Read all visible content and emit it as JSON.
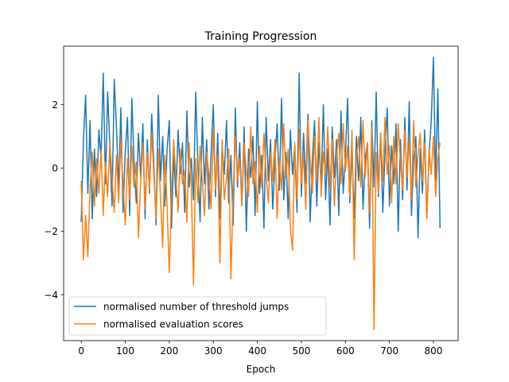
{
  "chart_data": {
    "type": "line",
    "title": "Training Progression",
    "xlabel": "Epoch",
    "ylabel": "",
    "xlim": [
      -40,
      856
    ],
    "ylim": [
      -5.45,
      3.85
    ],
    "xticks": [
      0,
      100,
      200,
      300,
      400,
      500,
      600,
      700,
      800
    ],
    "yticks": [
      -4,
      -2,
      0,
      2
    ],
    "grid": false,
    "legend": "lower-left",
    "series": [
      {
        "name": "normalised number of threshold jumps",
        "color": "#1f77b4",
        "x": [
          0,
          5,
          10,
          15,
          20,
          25,
          30,
          35,
          40,
          45,
          50,
          55,
          60,
          65,
          70,
          75,
          80,
          85,
          90,
          95,
          100,
          105,
          110,
          115,
          120,
          125,
          130,
          135,
          140,
          145,
          150,
          155,
          160,
          165,
          170,
          175,
          180,
          185,
          190,
          195,
          200,
          205,
          210,
          215,
          220,
          225,
          230,
          235,
          240,
          245,
          250,
          255,
          260,
          265,
          270,
          275,
          280,
          285,
          290,
          295,
          300,
          305,
          310,
          315,
          320,
          325,
          330,
          335,
          340,
          345,
          350,
          355,
          360,
          365,
          370,
          375,
          380,
          385,
          390,
          395,
          400,
          405,
          410,
          415,
          420,
          425,
          430,
          435,
          440,
          445,
          450,
          455,
          460,
          465,
          470,
          475,
          480,
          485,
          490,
          495,
          500,
          505,
          510,
          515,
          520,
          525,
          530,
          535,
          540,
          545,
          550,
          555,
          560,
          565,
          570,
          575,
          580,
          585,
          590,
          595,
          600,
          605,
          610,
          615,
          620,
          625,
          630,
          635,
          640,
          645,
          650,
          655,
          660,
          665,
          670,
          675,
          680,
          685,
          690,
          695,
          700,
          705,
          710,
          715,
          720,
          725,
          730,
          735,
          740,
          745,
          750,
          755,
          760,
          765,
          770,
          775,
          780,
          785,
          790,
          795,
          800,
          805,
          810,
          815
        ],
        "values": [
          -1.7,
          0.9,
          2.3,
          -0.8,
          1.5,
          -1.6,
          0.6,
          -0.9,
          1.2,
          0.3,
          3.0,
          -0.5,
          2.4,
          0.7,
          -1.2,
          2.8,
          1.3,
          -0.7,
          1.9,
          -1.4,
          0.5,
          1.6,
          -1.5,
          2.2,
          0.2,
          -1.1,
          1.1,
          -0.3,
          1.4,
          -1.6,
          0.9,
          -0.8,
          1.7,
          0.1,
          -1.8,
          2.3,
          -0.4,
          1.0,
          -1.2,
          0.6,
          1.5,
          -1.9,
          0.4,
          -0.9,
          1.2,
          -0.2,
          0.8,
          -1.4,
          1.8,
          -0.6,
          0.3,
          -1.0,
          2.4,
          0.1,
          -1.7,
          1.6,
          -0.5,
          0.9,
          -1.3,
          0.5,
          2.0,
          -0.9,
          1.1,
          -1.6,
          0.7,
          -0.2,
          1.5,
          -1.1,
          0.4,
          -1.8,
          1.9,
          -0.6,
          0.8,
          -1.2,
          1.3,
          -2.0,
          0.6,
          -0.3,
          1.0,
          -1.5,
          2.1,
          -0.8,
          0.4,
          -1.9,
          1.6,
          -0.4,
          0.9,
          -1.3,
          0.2,
          1.4,
          -0.7,
          2.2,
          -1.0,
          0.5,
          -1.6,
          1.2,
          -0.2,
          0.7,
          -1.4,
          3.0,
          -0.9,
          1.1,
          -0.5,
          1.7,
          -1.7,
          0.3,
          1.5,
          -1.2,
          0.8,
          -0.6,
          2.0,
          -1.0,
          0.6,
          -1.8,
          1.3,
          -0.3,
          0.9,
          -1.5,
          1.8,
          -0.8,
          0.4,
          2.2,
          -1.1,
          0.6,
          -1.6,
          1.0,
          -0.4,
          1.6,
          -1.3,
          0.3,
          0.8,
          -1.9,
          1.5,
          -0.6,
          2.4,
          -0.9,
          1.1,
          -1.4,
          0.5,
          1.9,
          -1.2,
          0.7,
          -0.5,
          1.4,
          -2.0,
          0.9,
          -1.0,
          1.6,
          -0.7,
          2.1,
          -1.5,
          0.3,
          1.0,
          -2.2,
          0.6,
          -0.8,
          1.2,
          -1.6,
          0.4,
          1.5,
          3.5,
          -0.4,
          2.5,
          -1.9
        ]
      },
      {
        "name": "normalised evaluation scores",
        "color": "#ff7f0e",
        "x": [
          0,
          5,
          10,
          15,
          20,
          25,
          30,
          35,
          40,
          45,
          50,
          55,
          60,
          65,
          70,
          75,
          80,
          85,
          90,
          95,
          100,
          105,
          110,
          115,
          120,
          125,
          130,
          135,
          140,
          145,
          150,
          155,
          160,
          165,
          170,
          175,
          180,
          185,
          190,
          195,
          200,
          205,
          210,
          215,
          220,
          225,
          230,
          235,
          240,
          245,
          250,
          255,
          260,
          265,
          270,
          275,
          280,
          285,
          290,
          295,
          300,
          305,
          310,
          315,
          320,
          325,
          330,
          335,
          340,
          345,
          350,
          355,
          360,
          365,
          370,
          375,
          380,
          385,
          390,
          395,
          400,
          405,
          410,
          415,
          420,
          425,
          430,
          435,
          440,
          445,
          450,
          455,
          460,
          465,
          470,
          475,
          480,
          485,
          490,
          495,
          500,
          505,
          510,
          515,
          520,
          525,
          530,
          535,
          540,
          545,
          550,
          555,
          560,
          565,
          570,
          575,
          580,
          585,
          590,
          595,
          600,
          605,
          610,
          615,
          620,
          625,
          630,
          635,
          640,
          645,
          650,
          655,
          660,
          665,
          670,
          675,
          680,
          685,
          690,
          695,
          700,
          705,
          710,
          715,
          720,
          725,
          730,
          735,
          740,
          745,
          750,
          755,
          760,
          765,
          770,
          775,
          780,
          785,
          790,
          795,
          800,
          805,
          810,
          815
        ],
        "values": [
          -0.4,
          -2.9,
          -1.5,
          -2.8,
          -0.6,
          0.5,
          -1.2,
          0.3,
          -0.8,
          0.6,
          -1.5,
          0.2,
          -0.9,
          0.8,
          -0.3,
          -1.4,
          0.4,
          -1.1,
          0.9,
          -0.5,
          -1.8,
          0.3,
          -1.0,
          0.7,
          -0.6,
          0.2,
          -2.2,
          -0.4,
          0.8,
          -1.3,
          0.5,
          -0.7,
          1.1,
          -0.2,
          -1.6,
          0.6,
          -0.9,
          -2.5,
          0.4,
          -1.2,
          -3.3,
          -0.8,
          0.9,
          -0.3,
          -1.4,
          0.6,
          -0.5,
          -0.1,
          -1.7,
          0.8,
          -0.6,
          -3.7,
          0.3,
          -1.1,
          0.7,
          -0.4,
          -1.5,
          0.5,
          -0.2,
          -1.3,
          1.2,
          -0.7,
          0.4,
          -3.0,
          0.9,
          -1.0,
          -0.3,
          0.6,
          -3.5,
          -0.8,
          1.0,
          -0.4,
          0.3,
          -1.2,
          0.8,
          -0.1,
          -0.9,
          1.3,
          -0.5,
          0.2,
          -1.4,
          0.7,
          -0.6,
          1.1,
          -0.2,
          -1.1,
          0.5,
          -0.4,
          0.9,
          -1.6,
          0.3,
          -0.7,
          1.4,
          -0.3,
          0.6,
          -1.9,
          -2.6,
          0.8,
          -1.0,
          1.2,
          -0.5,
          0.4,
          -1.3,
          1.5,
          0.2,
          -0.8,
          1.0,
          -0.4,
          1.6,
          -0.9,
          0.5,
          -0.2,
          1.3,
          -0.6,
          0.9,
          -1.2,
          0.4,
          1.1,
          -0.5,
          1.4,
          -0.1,
          0.7,
          -0.9,
          1.2,
          -2.9,
          0.3,
          1.0,
          -0.6,
          1.5,
          -0.3,
          0.8,
          -1.4,
          1.3,
          -5.1,
          0.5,
          -0.8,
          1.1,
          -0.4,
          1.6,
          -0.2,
          0.7,
          -1.1,
          1.0,
          -0.5,
          1.4,
          0.2,
          -0.7,
          1.2,
          -0.3,
          0.9,
          -1.0,
          1.5,
          -0.6,
          0.4,
          1.1,
          -0.4,
          0.8,
          -1.6,
          0.6,
          -0.2,
          1.0,
          -0.9,
          0.3,
          0.8
        ]
      }
    ]
  }
}
